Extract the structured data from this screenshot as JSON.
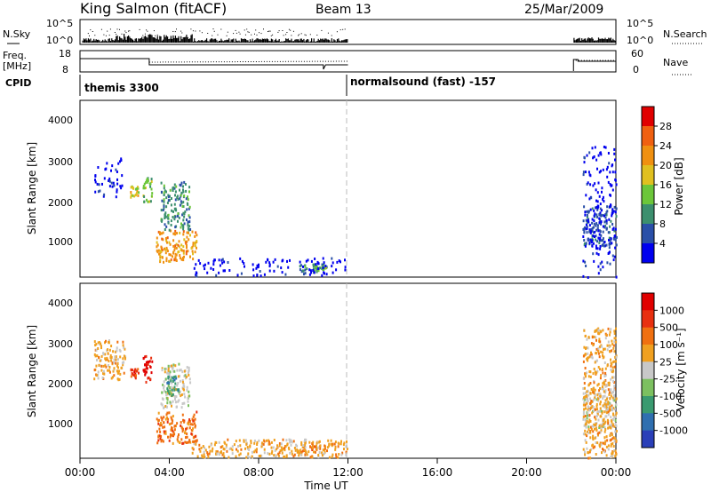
{
  "header": {
    "station": "King Salmon (fitACF)",
    "beam": "Beam 13",
    "date": "25/Mar/2009"
  },
  "top_panels": {
    "nsky_label": "N.Sky",
    "nsearch_label": "N.Search",
    "freq_label_1": "Freq.",
    "freq_label_2": "[MHz]",
    "nave_label": "Nave",
    "cpid_label": "CPID",
    "nsky_ticks": [
      "10^5",
      "10^0"
    ],
    "nsearch_ticks": [
      "10^5",
      "10^0"
    ],
    "freq_ticks": [
      "18",
      "8"
    ],
    "nave_ticks": [
      "60",
      "0"
    ],
    "cpid_segments": [
      "themis 3300",
      "normalsound (fast) -157"
    ]
  },
  "colorbars": {
    "power": {
      "label": "Power [dB]",
      "ticks": [
        "28",
        "24",
        "20",
        "16",
        "12",
        "8",
        "4"
      ],
      "colors": [
        "#0000ee",
        "#2a4fa8",
        "#3c8f6e",
        "#6cc63a",
        "#e0c020",
        "#f09010",
        "#f06010",
        "#e00000"
      ]
    },
    "velocity": {
      "label": "Velocity [m s⁻¹]",
      "ticks": [
        "1000",
        "500",
        "100",
        "25",
        "-25",
        "-100",
        "-500",
        "-1000"
      ],
      "colors": [
        "#2a3fb8",
        "#2f6fb0",
        "#3a9a70",
        "#7cc060",
        "#c8c8c8",
        "#f0a020",
        "#f07010",
        "#e83010",
        "#e00000"
      ]
    }
  },
  "chart_data": [
    {
      "type": "heatmap",
      "title": "",
      "ylabel": "Slant Range [km]",
      "xlabel": "Time UT",
      "xticks": [
        "00:00",
        "04:00",
        "08:00",
        "12:00",
        "16:00",
        "20:00",
        "00:00"
      ],
      "yticks": [
        "4000",
        "3000",
        "2000",
        "1000"
      ],
      "xlim_hours": [
        0,
        24
      ],
      "ylim_km": [
        200,
        4600
      ],
      "colorbar": "Power [dB]",
      "clusters": [
        {
          "t": [
            3.4,
            5.2
          ],
          "r": [
            600,
            1400
          ],
          "level": 5
        },
        {
          "t": [
            3.6,
            4.9
          ],
          "r": [
            1400,
            2600
          ],
          "level": 2
        },
        {
          "t": [
            2.8,
            3.2
          ],
          "r": [
            2100,
            2700
          ],
          "level": 3
        },
        {
          "t": [
            2.2,
            2.6
          ],
          "r": [
            2200,
            2500
          ],
          "level": 4
        },
        {
          "t": [
            9.8,
            11.1
          ],
          "r": [
            350,
            550
          ],
          "level": 2
        },
        {
          "t": [
            10.5,
            11.0
          ],
          "r": [
            400,
            500
          ],
          "level": 3
        },
        {
          "t": [
            22.5,
            24.0
          ],
          "r": [
            1000,
            2000
          ],
          "level": 1
        },
        {
          "t": [
            22.5,
            24.0
          ],
          "r": [
            200,
            3500
          ],
          "level": 0
        },
        {
          "t": [
            0.6,
            2.0
          ],
          "r": [
            2200,
            3200
          ],
          "level": 0
        },
        {
          "t": [
            5.0,
            12.0
          ],
          "r": [
            250,
            700
          ],
          "level": 0
        }
      ]
    },
    {
      "type": "heatmap",
      "title": "",
      "ylabel": "Slant Range [km]",
      "xlabel": "Time UT",
      "xticks": [
        "00:00",
        "04:00",
        "08:00",
        "12:00",
        "16:00",
        "20:00",
        "00:00"
      ],
      "yticks": [
        "4000",
        "3000",
        "2000",
        "1000"
      ],
      "xlim_hours": [
        0,
        24
      ],
      "ylim_km": [
        200,
        4600
      ],
      "colorbar": "Velocity [m s⁻¹]",
      "clusters": [
        {
          "t": [
            3.4,
            5.2
          ],
          "r": [
            600,
            1400
          ],
          "level": 6
        },
        {
          "t": [
            2.8,
            3.2
          ],
          "r": [
            2100,
            2800
          ],
          "level": 8
        },
        {
          "t": [
            2.2,
            2.6
          ],
          "r": [
            2200,
            2500
          ],
          "level": 7
        },
        {
          "t": [
            3.6,
            4.9
          ],
          "r": [
            1500,
            2600
          ],
          "level": 4
        },
        {
          "t": [
            3.8,
            4.4
          ],
          "r": [
            1800,
            2300
          ],
          "level": 2
        },
        {
          "t": [
            9.8,
            11.1
          ],
          "r": [
            350,
            550
          ],
          "level": 6
        },
        {
          "t": [
            22.5,
            24.0
          ],
          "r": [
            1000,
            2000
          ],
          "level": 4
        },
        {
          "t": [
            22.5,
            24.0
          ],
          "r": [
            200,
            3500
          ],
          "level": 5
        },
        {
          "t": [
            0.6,
            2.0
          ],
          "r": [
            2200,
            3200
          ],
          "level": 5
        },
        {
          "t": [
            5.0,
            12.0
          ],
          "r": [
            250,
            700
          ],
          "level": 5
        }
      ]
    }
  ]
}
